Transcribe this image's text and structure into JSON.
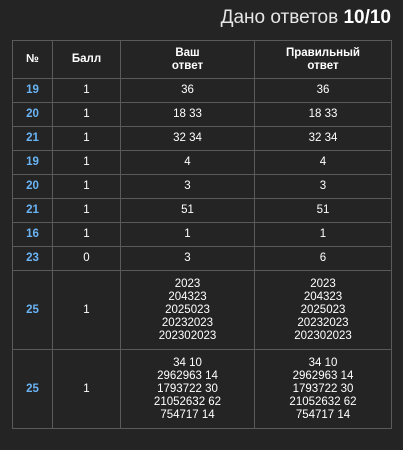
{
  "header": {
    "title": "Дано ответов",
    "score": "10/10"
  },
  "table": {
    "columns": [
      [
        "№"
      ],
      [
        "Балл"
      ],
      [
        "Ваш",
        "ответ"
      ],
      [
        "Правильный",
        "ответ"
      ]
    ],
    "rows": [
      [
        "19",
        "1",
        [
          "36"
        ],
        [
          "36"
        ]
      ],
      [
        "20",
        "1",
        [
          "18 33"
        ],
        [
          "18 33"
        ]
      ],
      [
        "21",
        "1",
        [
          "32 34"
        ],
        [
          "32 34"
        ]
      ],
      [
        "19",
        "1",
        [
          "4"
        ],
        [
          "4"
        ]
      ],
      [
        "20",
        "1",
        [
          "3"
        ],
        [
          "3"
        ]
      ],
      [
        "21",
        "1",
        [
          "51"
        ],
        [
          "51"
        ]
      ],
      [
        "16",
        "1",
        [
          "1"
        ],
        [
          "1"
        ]
      ],
      [
        "23",
        "0",
        [
          "3"
        ],
        [
          "6"
        ]
      ],
      [
        "25",
        "1",
        [
          "2023",
          "204323",
          "2025023",
          "20232023",
          "202302023"
        ],
        [
          "2023",
          "204323",
          "2025023",
          "20232023",
          "202302023"
        ]
      ],
      [
        "25",
        "1",
        [
          "34 10",
          "2962963 14",
          "1793722 30",
          "21052632 62",
          "754717 14"
        ],
        [
          "34 10",
          "2962963 14",
          "1793722 30",
          "21052632 62",
          "754717 14"
        ]
      ]
    ]
  }
}
